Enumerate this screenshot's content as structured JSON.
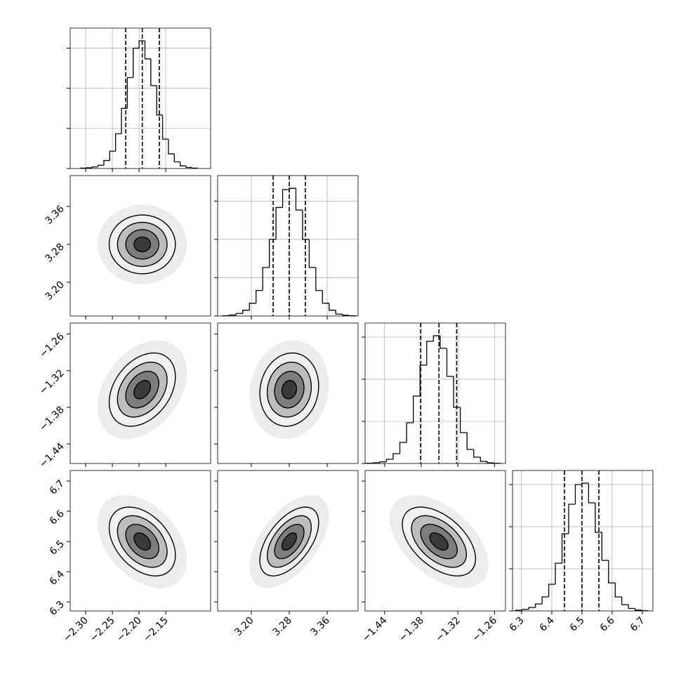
{
  "chart_data": {
    "type": "corner",
    "levels": [
      0.5,
      1,
      1.5,
      2
    ],
    "level_fills": [
      "#3a3a3a",
      "#7d7d7d",
      "#bdbdbd",
      "#f0f0f0"
    ],
    "line_color": "#000000",
    "grid": true,
    "parameters": [
      {
        "lim": [
          -2.329,
          -2.066
        ],
        "ticks": [
          {
            "value": -2.3,
            "label": "−2.30"
          },
          {
            "value": -2.25,
            "label": "−2.25"
          },
          {
            "value": -2.2,
            "label": "−2.20"
          },
          {
            "value": -2.15,
            "label": "−2.15"
          }
        ],
        "quantiles": [
          -2.225,
          -2.194,
          -2.162
        ],
        "sigma": 0.031,
        "bins": [
          -2.31,
          -2.299,
          -2.288,
          -2.277,
          -2.266,
          -2.255,
          -2.244,
          -2.233,
          -2.222,
          -2.211,
          -2.2,
          -2.189,
          -2.178,
          -2.167,
          -2.156,
          -2.145,
          -2.134,
          -2.123,
          -2.112,
          -2.101,
          -2.09
        ],
        "counts": [
          3,
          6,
          12,
          25,
          60,
          130,
          260,
          450,
          680,
          900,
          955,
          820,
          620,
          400,
          220,
          110,
          50,
          20,
          8,
          3
        ],
        "hist_ylim": [
          0,
          1050
        ],
        "hist_yticks": [
          0,
          300,
          600,
          900
        ]
      },
      {
        "lim": [
          3.129,
          3.425
        ],
        "ticks": [
          {
            "value": 3.2,
            "label": "3.20"
          },
          {
            "value": 3.28,
            "label": "3.28"
          },
          {
            "value": 3.36,
            "label": "3.36"
          }
        ],
        "quantiles": [
          3.246,
          3.28,
          3.314
        ],
        "sigma": 0.031,
        "bins": [
          3.14,
          3.154,
          3.168,
          3.182,
          3.196,
          3.21,
          3.224,
          3.238,
          3.252,
          3.266,
          3.28,
          3.294,
          3.308,
          3.322,
          3.336,
          3.35,
          3.364,
          3.378,
          3.392,
          3.406,
          3.42
        ],
        "counts": [
          2,
          8,
          20,
          45,
          100,
          200,
          380,
          600,
          850,
          990,
          1000,
          830,
          600,
          380,
          200,
          100,
          45,
          15,
          6,
          2
        ],
        "hist_ylim": [
          0,
          1100
        ],
        "hist_yticks": [
          0,
          300,
          600,
          900
        ]
      },
      {
        "lim": [
          -1.472,
          -1.242
        ],
        "ticks": [
          {
            "value": -1.44,
            "label": "−1.44"
          },
          {
            "value": -1.38,
            "label": "−1.38"
          },
          {
            "value": -1.32,
            "label": "−1.32"
          },
          {
            "value": -1.26,
            "label": "−1.26"
          }
        ],
        "quantiles": [
          -1.381,
          -1.351,
          -1.322
        ],
        "sigma": 0.03,
        "bins": [
          -1.47,
          -1.459,
          -1.448,
          -1.437,
          -1.426,
          -1.415,
          -1.404,
          -1.393,
          -1.382,
          -1.371,
          -1.36,
          -1.349,
          -1.338,
          -1.327,
          -1.316,
          -1.305,
          -1.294,
          -1.283,
          -1.272,
          -1.261,
          -1.25
        ],
        "counts": [
          2,
          5,
          12,
          30,
          70,
          150,
          290,
          480,
          700,
          870,
          910,
          820,
          620,
          400,
          220,
          100,
          45,
          15,
          5,
          2
        ],
        "hist_ylim": [
          0,
          1000
        ],
        "hist_yticks": [
          0,
          300,
          600,
          900
        ]
      },
      {
        "lim": [
          6.27,
          6.735
        ],
        "ticks": [
          6.3,
          6.4,
          6.5,
          6.6,
          6.7
        ],
        "quantiles": [
          6.442,
          6.5,
          6.556
        ],
        "sigma": 0.057,
        "bins": [
          6.28,
          6.302,
          6.324,
          6.346,
          6.368,
          6.39,
          6.412,
          6.434,
          6.456,
          6.478,
          6.5,
          6.522,
          6.544,
          6.566,
          6.588,
          6.61,
          6.632,
          6.654,
          6.676,
          6.698,
          6.72
        ],
        "counts": [
          5,
          12,
          25,
          50,
          100,
          190,
          340,
          550,
          760,
          900,
          910,
          770,
          560,
          360,
          200,
          100,
          45,
          18,
          6,
          2
        ],
        "hist_ylim": [
          0,
          1000
        ],
        "hist_yticks": [
          0,
          300,
          600,
          900
        ]
      }
    ],
    "pairs": [
      {
        "x": 0,
        "y": 1,
        "rho": 0.0
      },
      {
        "x": 0,
        "y": 2,
        "rho": 0.35
      },
      {
        "x": 1,
        "y": 2,
        "rho": 0.1
      },
      {
        "x": 0,
        "y": 3,
        "rho": -0.4
      },
      {
        "x": 1,
        "y": 3,
        "rho": 0.55
      },
      {
        "x": 2,
        "y": 3,
        "rho": -0.5
      }
    ]
  }
}
